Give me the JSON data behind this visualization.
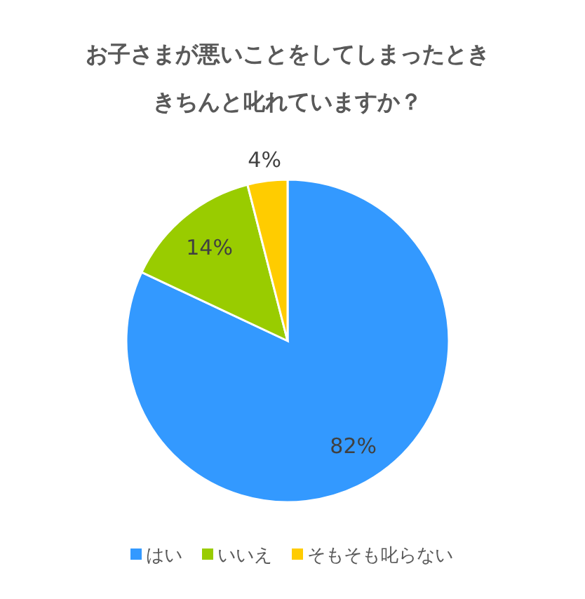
{
  "chart_data": {
    "type": "pie",
    "title": "お子さまが悪いことをしてしまったとききちんと叱れていますか？",
    "categories": [
      "はい",
      "いいえ",
      "そもそも叱らない"
    ],
    "values": [
      82,
      14,
      4
    ],
    "colors": [
      "#3399ff",
      "#99cc00",
      "#ffcc00"
    ],
    "value_labels": [
      "82%",
      "14%",
      "4%"
    ],
    "legend": "bottom"
  }
}
